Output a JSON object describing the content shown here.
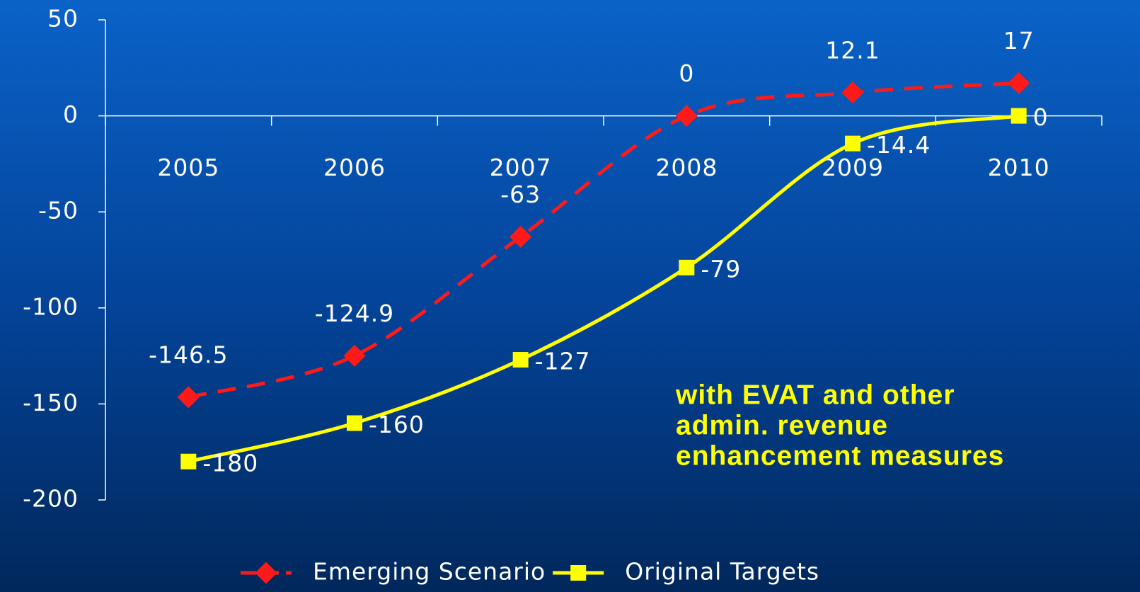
{
  "chart_data": {
    "type": "line",
    "categories": [
      "2005",
      "2006",
      "2007",
      "2008",
      "2009",
      "2010"
    ],
    "series": [
      {
        "name": "Emerging Scenario",
        "color": "#ff1a1a",
        "values": [
          -146.5,
          -124.9,
          -63,
          0,
          12.1,
          17
        ]
      },
      {
        "name": "Original Targets",
        "color": "#ffff00",
        "values": [
          -180,
          -160,
          -127,
          -79,
          -14.4,
          0
        ]
      }
    ],
    "ylim": [
      -200,
      50
    ],
    "yticks": [
      -200,
      -150,
      -100,
      -50,
      0,
      50
    ],
    "annotation": [
      "with EVAT and other",
      "admin. revenue",
      "enhancement measures"
    ],
    "legend": "bottom"
  }
}
